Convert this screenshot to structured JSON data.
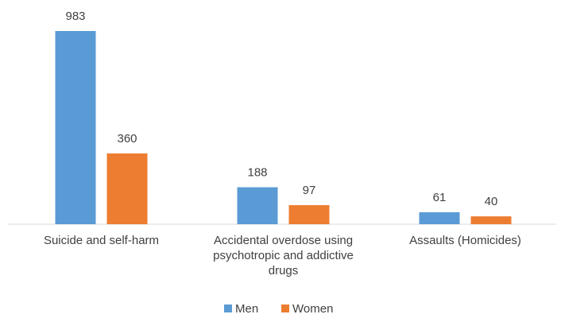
{
  "chart_data": {
    "type": "bar",
    "categories": [
      "Suicide and self-harm",
      "Accidental overdose using psychotropic and addictive drugs",
      "Assaults (Homicides)"
    ],
    "series": [
      {
        "name": "Men",
        "color": "#5b9bd5",
        "values": [
          983,
          188,
          61
        ]
      },
      {
        "name": "Women",
        "color": "#ed7d31",
        "values": [
          360,
          97,
          40
        ]
      }
    ],
    "legend": "bottom"
  }
}
